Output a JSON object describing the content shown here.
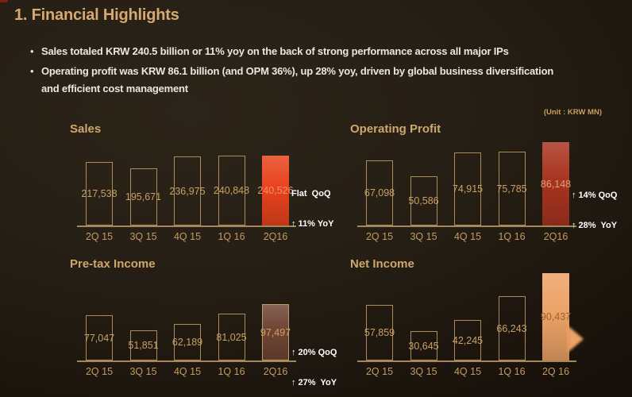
{
  "slide": {
    "title": "1. Financial Highlights",
    "bullets": [
      {
        "lines": [
          "Sales totaled KRW 240.5 billion or 11% yoy on the back of strong performance across all major IPs"
        ]
      },
      {
        "lines": [
          "Operating profit was KRW 86.1 billion (and OPM 36%), up 28% yoy, driven by global business diversification",
          "and efficient cost management"
        ]
      }
    ],
    "unit_note": "(Unit : KRW MN)"
  },
  "colors": {
    "background": "#201912",
    "title_gold": "#d6a96f",
    "body_text": "#eae6e0",
    "bar_outline": "#ab8b58",
    "bar_label_gold": "#c9a066",
    "axis_line": "#a5875a",
    "annotation_text": "#ffffff",
    "edge_accent_red": "#7e1e12",
    "sales_highlight": "#e8431d",
    "operating_profit_highlight": "#a93420",
    "pretax_highlight": "#6f4534",
    "net_income_highlight": "#eda266"
  },
  "chart_data": [
    {
      "type": "bar",
      "title": "Sales",
      "categories": [
        "2Q 15",
        "3Q 15",
        "4Q 15",
        "1Q 16",
        "2Q16"
      ],
      "values": [
        217538,
        195671,
        236975,
        240848,
        240526
      ],
      "labels": [
        "217,538",
        "195,671",
        "236,975",
        "240,848",
        "240,526"
      ],
      "ylim": [
        0,
        300000
      ],
      "grid": false,
      "legend": false,
      "xlabel": "",
      "ylabel": "",
      "highlight_index": 4,
      "highlight_color": "#e8431d",
      "highlight_label_color": "#f2926c",
      "highlight_border": false,
      "arrow": false,
      "annotation_lines": [
        "Flat  QoQ",
        "↑ 11% YoY"
      ]
    },
    {
      "type": "bar",
      "title": "Operating Profit",
      "categories": [
        "2Q 15",
        "3Q 15",
        "4Q 15",
        "1Q 16",
        "2Q16"
      ],
      "values": [
        67098,
        50586,
        74915,
        75785,
        86148
      ],
      "labels": [
        "67,098",
        "50,586",
        "74,915",
        "75,785",
        "86,148"
      ],
      "ylim": [
        0,
        90000
      ],
      "grid": false,
      "legend": false,
      "xlabel": "",
      "ylabel": "",
      "highlight_index": 4,
      "highlight_color": "#a93420",
      "highlight_label_color": "#d8a273",
      "highlight_border": false,
      "arrow": false,
      "annotation_lines": [
        "↑ 14% QoQ",
        "↑ 28%  YoY"
      ]
    },
    {
      "type": "bar",
      "title": "Pre-tax Income",
      "categories": [
        "2Q 15",
        "3Q 15",
        "4Q 15",
        "1Q 16",
        "2Q16"
      ],
      "values": [
        77047,
        51851,
        62189,
        81025,
        97497
      ],
      "labels": [
        "77,047",
        "51,851",
        "62,189",
        "81,025",
        "97,497"
      ],
      "ylim": [
        0,
        150000
      ],
      "grid": false,
      "legend": false,
      "xlabel": "",
      "ylabel": "",
      "highlight_index": 4,
      "highlight_color": "#6f4534",
      "highlight_label_color": "#cfa064",
      "highlight_border": true,
      "arrow": false,
      "annotation_lines": [
        "↑ 20% QoQ",
        "↑ 27%  YoY"
      ]
    },
    {
      "type": "bar",
      "title": "Net Income",
      "categories": [
        "2Q 15",
        "3Q 15",
        "4Q 15",
        "1Q 16",
        "2Q 16"
      ],
      "values": [
        57859,
        30645,
        42245,
        66243,
        90437
      ],
      "labels": [
        "57,859",
        "30,645",
        "42,245",
        "66,243",
        "90,437"
      ],
      "ylim": [
        0,
        90500
      ],
      "grid": false,
      "legend": false,
      "xlabel": "",
      "ylabel": "",
      "highlight_index": 4,
      "highlight_color": "#eda266",
      "highlight_label_color": "#9a6130",
      "highlight_border": false,
      "arrow": true,
      "annotation_lines": []
    }
  ]
}
